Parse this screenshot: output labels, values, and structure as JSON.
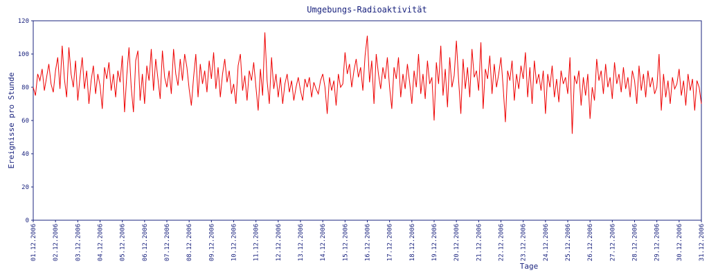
{
  "chart_data": {
    "type": "line",
    "title": "Umgebungs-Radioaktivität",
    "x_label": "Tage",
    "y_label": "Ereignisse pro Stunde",
    "color": "#ee0000",
    "ylim": [
      0,
      120
    ],
    "yticks": [
      0,
      20,
      40,
      60,
      80,
      100,
      120
    ],
    "xlim": [
      0,
      30
    ],
    "xticks": [
      {
        "value": 0,
        "label": "01.12.2006"
      },
      {
        "value": 1,
        "label": "02.12.2006"
      },
      {
        "value": 2,
        "label": "03.12.2006"
      },
      {
        "value": 3,
        "label": "04.12.2006"
      },
      {
        "value": 4,
        "label": "05.12.2006"
      },
      {
        "value": 5,
        "label": "06.12.2006"
      },
      {
        "value": 6,
        "label": "07.12.2006"
      },
      {
        "value": 7,
        "label": "08.12.2006"
      },
      {
        "value": 8,
        "label": "09.12.2006"
      },
      {
        "value": 9,
        "label": "10.12.2006"
      },
      {
        "value": 10,
        "label": "11.12.2006"
      },
      {
        "value": 11,
        "label": "12.12.2006"
      },
      {
        "value": 12,
        "label": "13.12.2006"
      },
      {
        "value": 13,
        "label": "14.12.2006"
      },
      {
        "value": 14,
        "label": "15.12.2006"
      },
      {
        "value": 15,
        "label": "16.12.2006"
      },
      {
        "value": 16,
        "label": "17.12.2006"
      },
      {
        "value": 17,
        "label": "18.12.2006"
      },
      {
        "value": 18,
        "label": "19.12.2006"
      },
      {
        "value": 19,
        "label": "20.12.2006"
      },
      {
        "value": 20,
        "label": "21.12.2006"
      },
      {
        "value": 21,
        "label": "22.12.2006"
      },
      {
        "value": 22,
        "label": "23.12.2006"
      },
      {
        "value": 23,
        "label": "24.12.2006"
      },
      {
        "value": 24,
        "label": "25.12.2006"
      },
      {
        "value": 25,
        "label": "26.12.2006"
      },
      {
        "value": 26,
        "label": "27.12.2006"
      },
      {
        "value": 27,
        "label": "28.12.2006"
      },
      {
        "value": 28,
        "label": "29.12.2006"
      },
      {
        "value": 29,
        "label": "30.12.2006"
      },
      {
        "value": 30,
        "label": "31.12.2006"
      }
    ],
    "values": [
      80,
      75,
      88,
      84,
      91,
      78,
      86,
      94,
      82,
      77,
      90,
      98,
      79,
      105,
      85,
      74,
      104,
      88,
      80,
      96,
      72,
      86,
      98,
      79,
      90,
      70,
      84,
      93,
      76,
      88,
      81,
      67,
      92,
      85,
      95,
      78,
      88,
      74,
      90,
      83,
      99,
      65,
      87,
      104,
      80,
      65,
      96,
      102,
      72,
      88,
      70,
      93,
      84,
      103,
      78,
      97,
      85,
      73,
      102,
      86,
      80,
      90,
      76,
      103,
      88,
      81,
      97,
      84,
      100,
      92,
      79,
      69,
      86,
      100,
      74,
      94,
      82,
      90,
      77,
      96,
      85,
      101,
      79,
      92,
      74,
      88,
      97,
      83,
      90,
      76,
      82,
      70,
      93,
      100,
      78,
      87,
      72,
      90,
      84,
      95,
      80,
      66,
      91,
      75,
      113,
      84,
      70,
      98,
      79,
      88,
      74,
      86,
      70,
      82,
      88,
      77,
      84,
      72,
      80,
      86,
      78,
      72,
      85,
      80,
      86,
      74,
      83,
      79,
      76,
      84,
      88,
      80,
      64,
      86,
      78,
      84,
      69,
      88,
      80,
      82,
      101,
      88,
      94,
      80,
      90,
      97,
      86,
      92,
      78,
      99,
      111,
      83,
      96,
      70,
      100,
      88,
      79,
      92,
      85,
      98,
      80,
      67,
      92,
      85,
      98,
      74,
      88,
      79,
      94,
      83,
      70,
      90,
      80,
      100,
      76,
      88,
      73,
      96,
      82,
      86,
      60,
      95,
      82,
      105,
      75,
      91,
      68,
      98,
      80,
      87,
      108,
      84,
      64,
      97,
      79,
      92,
      74,
      103,
      86,
      90,
      78,
      107,
      67,
      91,
      85,
      99,
      76,
      94,
      80,
      88,
      98,
      80,
      59,
      90,
      84,
      96,
      72,
      88,
      79,
      93,
      85,
      101,
      74,
      92,
      70,
      96,
      82,
      88,
      78,
      90,
      64,
      88,
      80,
      93,
      74,
      85,
      71,
      90,
      82,
      86,
      76,
      98,
      52,
      87,
      82,
      90,
      69,
      86,
      75,
      88,
      61,
      80,
      72,
      97,
      84,
      90,
      76,
      94,
      80,
      86,
      73,
      95,
      82,
      88,
      77,
      92,
      79,
      86,
      74,
      90,
      84,
      70,
      93,
      78,
      88,
      74,
      90,
      80,
      86,
      76,
      80,
      100,
      66,
      88,
      74,
      84,
      70,
      86,
      79,
      82,
      91,
      75,
      84,
      69,
      88,
      78,
      85,
      66,
      84,
      80,
      70
    ]
  }
}
